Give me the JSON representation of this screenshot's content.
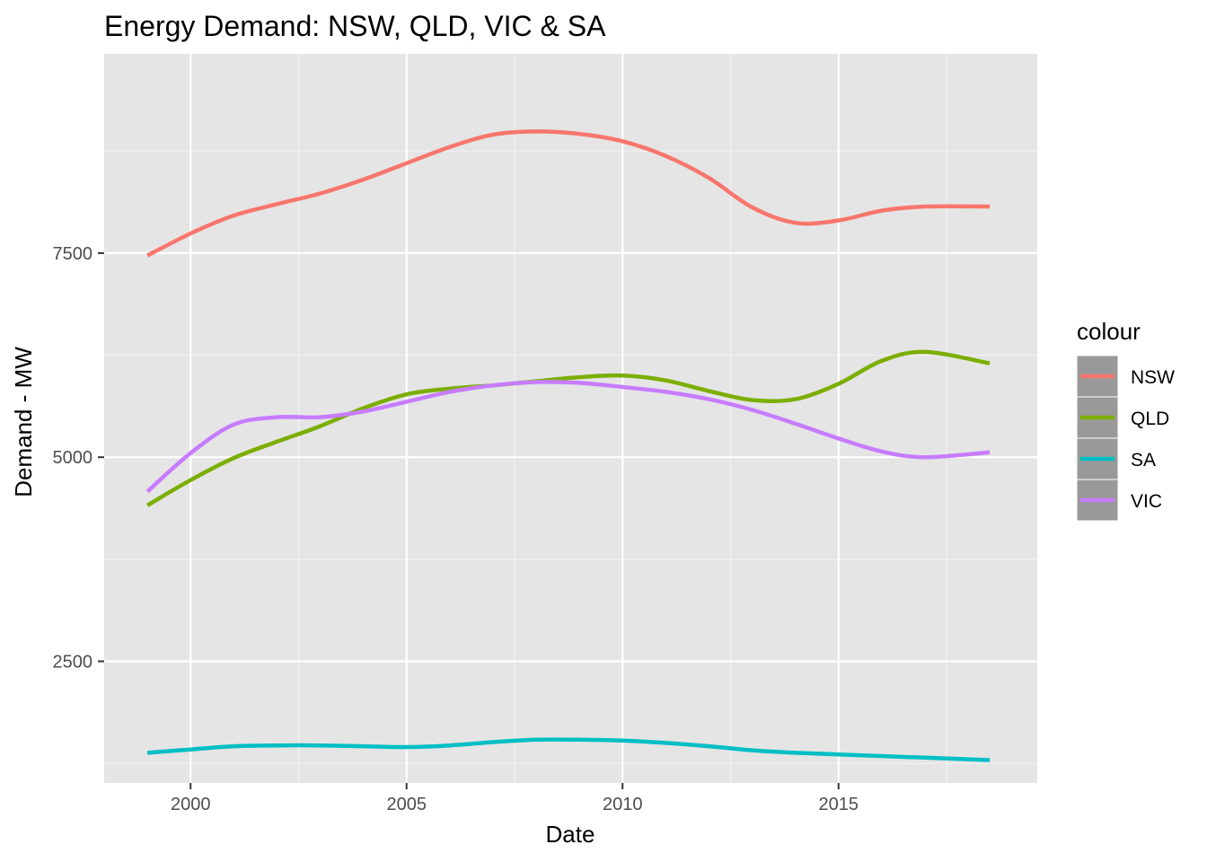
{
  "chart_data": {
    "type": "line",
    "title": "Energy Demand: NSW, QLD, VIC & SA",
    "xlabel": "Date",
    "ylabel": "Demand - MW",
    "xlim": [
      1998.0,
      2019.6
    ],
    "ylim": [
      1010,
      9940
    ],
    "x_ticks": [
      2000,
      2005,
      2010,
      2015
    ],
    "x_tick_labels": [
      "2000",
      "2005",
      "2010",
      "2015"
    ],
    "x_minor": [
      2002.5,
      2007.5,
      2012.5,
      2017.5
    ],
    "y_ticks": [
      2500,
      5000,
      7500
    ],
    "y_tick_labels": [
      "2500",
      "5000",
      "7500"
    ],
    "y_minor": [
      1250,
      3750,
      6250,
      8750
    ],
    "grid": true,
    "legend": {
      "title": "colour",
      "position": "right"
    },
    "panel_background": "#e5e5e5",
    "x": [
      1999.0,
      2000.0,
      2001.0,
      2002.0,
      2003.0,
      2004.0,
      2005.0,
      2006.0,
      2007.0,
      2008.0,
      2009.0,
      2010.0,
      2011.0,
      2012.0,
      2013.0,
      2014.0,
      2015.0,
      2016.0,
      2017.0,
      2018.5
    ],
    "series": [
      {
        "name": "NSW",
        "color": "#f8766d",
        "values": [
          7470,
          7740,
          7960,
          8100,
          8230,
          8400,
          8600,
          8800,
          8950,
          8990,
          8960,
          8870,
          8690,
          8420,
          8060,
          7870,
          7900,
          8020,
          8070,
          8070
        ]
      },
      {
        "name": "QLD",
        "color": "#7cae00",
        "values": [
          4410,
          4720,
          4990,
          5190,
          5380,
          5600,
          5770,
          5840,
          5880,
          5930,
          5980,
          6000,
          5940,
          5810,
          5700,
          5710,
          5900,
          6180,
          6290,
          6150
        ]
      },
      {
        "name": "SA",
        "color": "#00bfc4",
        "values": [
          1380,
          1420,
          1460,
          1470,
          1470,
          1460,
          1450,
          1470,
          1510,
          1540,
          1540,
          1530,
          1500,
          1460,
          1410,
          1380,
          1360,
          1340,
          1320,
          1290
        ]
      },
      {
        "name": "VIC",
        "color": "#c77cff",
        "values": [
          4580,
          5050,
          5400,
          5490,
          5490,
          5560,
          5680,
          5800,
          5880,
          5920,
          5910,
          5860,
          5800,
          5710,
          5580,
          5410,
          5230,
          5070,
          5000,
          5060
        ]
      }
    ]
  }
}
